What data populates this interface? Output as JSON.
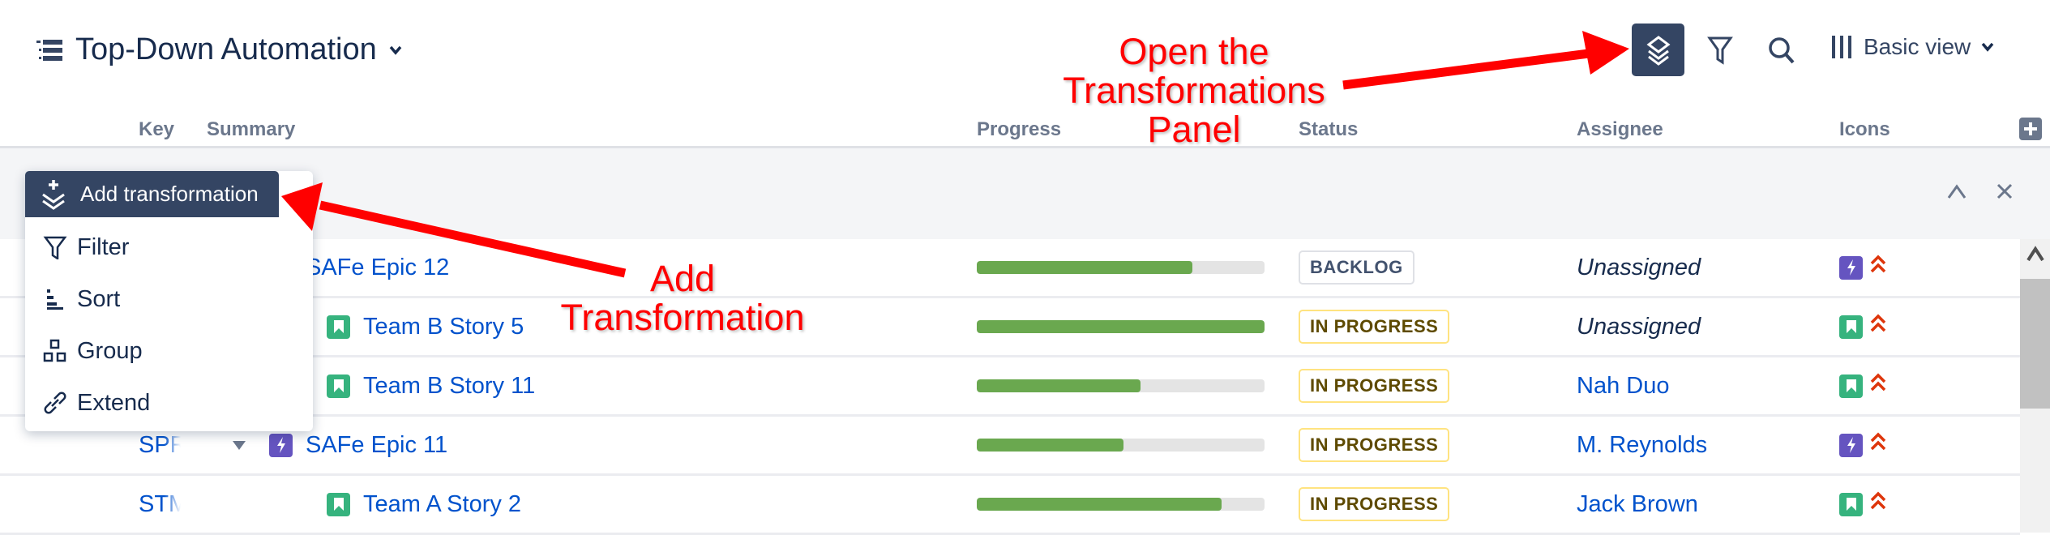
{
  "header": {
    "title": "Top-Down Automation",
    "view_label": "Basic view"
  },
  "columns": [
    "Key",
    "Summary",
    "Progress",
    "Status",
    "Assignee",
    "Icons"
  ],
  "menu": {
    "add_label": "Add transformation",
    "items": [
      {
        "label": "Filter",
        "icon": "filter-icon"
      },
      {
        "label": "Sort",
        "icon": "sort-icon"
      },
      {
        "label": "Group",
        "icon": "group-icon"
      },
      {
        "label": "Extend",
        "icon": "link-icon"
      }
    ]
  },
  "rows": [
    {
      "key": "",
      "summary": "SAFe Epic 12",
      "type": "epic",
      "progress": 0.75,
      "status": "BACKLOG",
      "assignee": "Unassigned",
      "unassigned": true
    },
    {
      "key": "",
      "summary": "Team B Story 5",
      "type": "story",
      "progress": 1.0,
      "status": "IN PROGRESS",
      "assignee": "Unassigned",
      "unassigned": true
    },
    {
      "key": "",
      "summary": "Team B Story 11",
      "type": "story",
      "progress": 0.57,
      "status": "IN PROGRESS",
      "assignee": "Nah Duo",
      "unassigned": false
    },
    {
      "key": "SPR",
      "summary": "SAFe Epic 11",
      "type": "epic",
      "progress": 0.51,
      "status": "IN PROGRESS",
      "assignee": "M. Reynolds",
      "unassigned": false
    },
    {
      "key": "STM",
      "summary": "Team A Story 2",
      "type": "story",
      "progress": 0.85,
      "status": "IN PROGRESS",
      "assignee": "Jack Brown",
      "unassigned": false
    }
  ],
  "annotations": {
    "open_panel": [
      "Open the",
      "Transformations",
      "Panel"
    ],
    "add": [
      "Add",
      "Transformation"
    ]
  },
  "colors": {
    "accent": "#344563",
    "link": "#0052cc",
    "annotation": "#ff0000",
    "progress": "#6aa84f",
    "story": "#36b37e",
    "epic": "#6554c0",
    "priority": "#de350b"
  }
}
